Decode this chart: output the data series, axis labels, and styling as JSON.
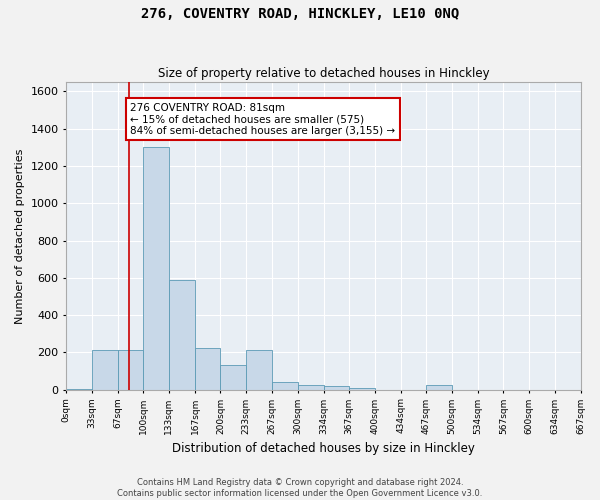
{
  "title": "276, COVENTRY ROAD, HINCKLEY, LE10 0NQ",
  "subtitle": "Size of property relative to detached houses in Hinckley",
  "xlabel": "Distribution of detached houses by size in Hinckley",
  "ylabel": "Number of detached properties",
  "bar_color": "#c8d8e8",
  "bar_edge_color": "#5b9ab5",
  "background_color": "#e8eef4",
  "grid_color": "#ffffff",
  "bin_edges": [
    0,
    33,
    67,
    100,
    133,
    167,
    200,
    233,
    267,
    300,
    334,
    367,
    400,
    434,
    467,
    500,
    534,
    567,
    600,
    634,
    667
  ],
  "bar_heights": [
    5,
    215,
    215,
    1300,
    590,
    225,
    130,
    215,
    40,
    25,
    20,
    10,
    0,
    0,
    25,
    0,
    0,
    0,
    0,
    0
  ],
  "property_size": 81,
  "vline_color": "#cc0000",
  "annotation_text": "276 COVENTRY ROAD: 81sqm\n← 15% of detached houses are smaller (575)\n84% of semi-detached houses are larger (3,155) →",
  "annotation_box_color": "#ffffff",
  "annotation_box_edge": "#cc0000",
  "ylim": [
    0,
    1650
  ],
  "yticks": [
    0,
    200,
    400,
    600,
    800,
    1000,
    1200,
    1400,
    1600
  ],
  "footer_line1": "Contains HM Land Registry data © Crown copyright and database right 2024.",
  "footer_line2": "Contains public sector information licensed under the Open Government Licence v3.0.",
  "fig_width": 6.0,
  "fig_height": 5.0,
  "dpi": 100
}
